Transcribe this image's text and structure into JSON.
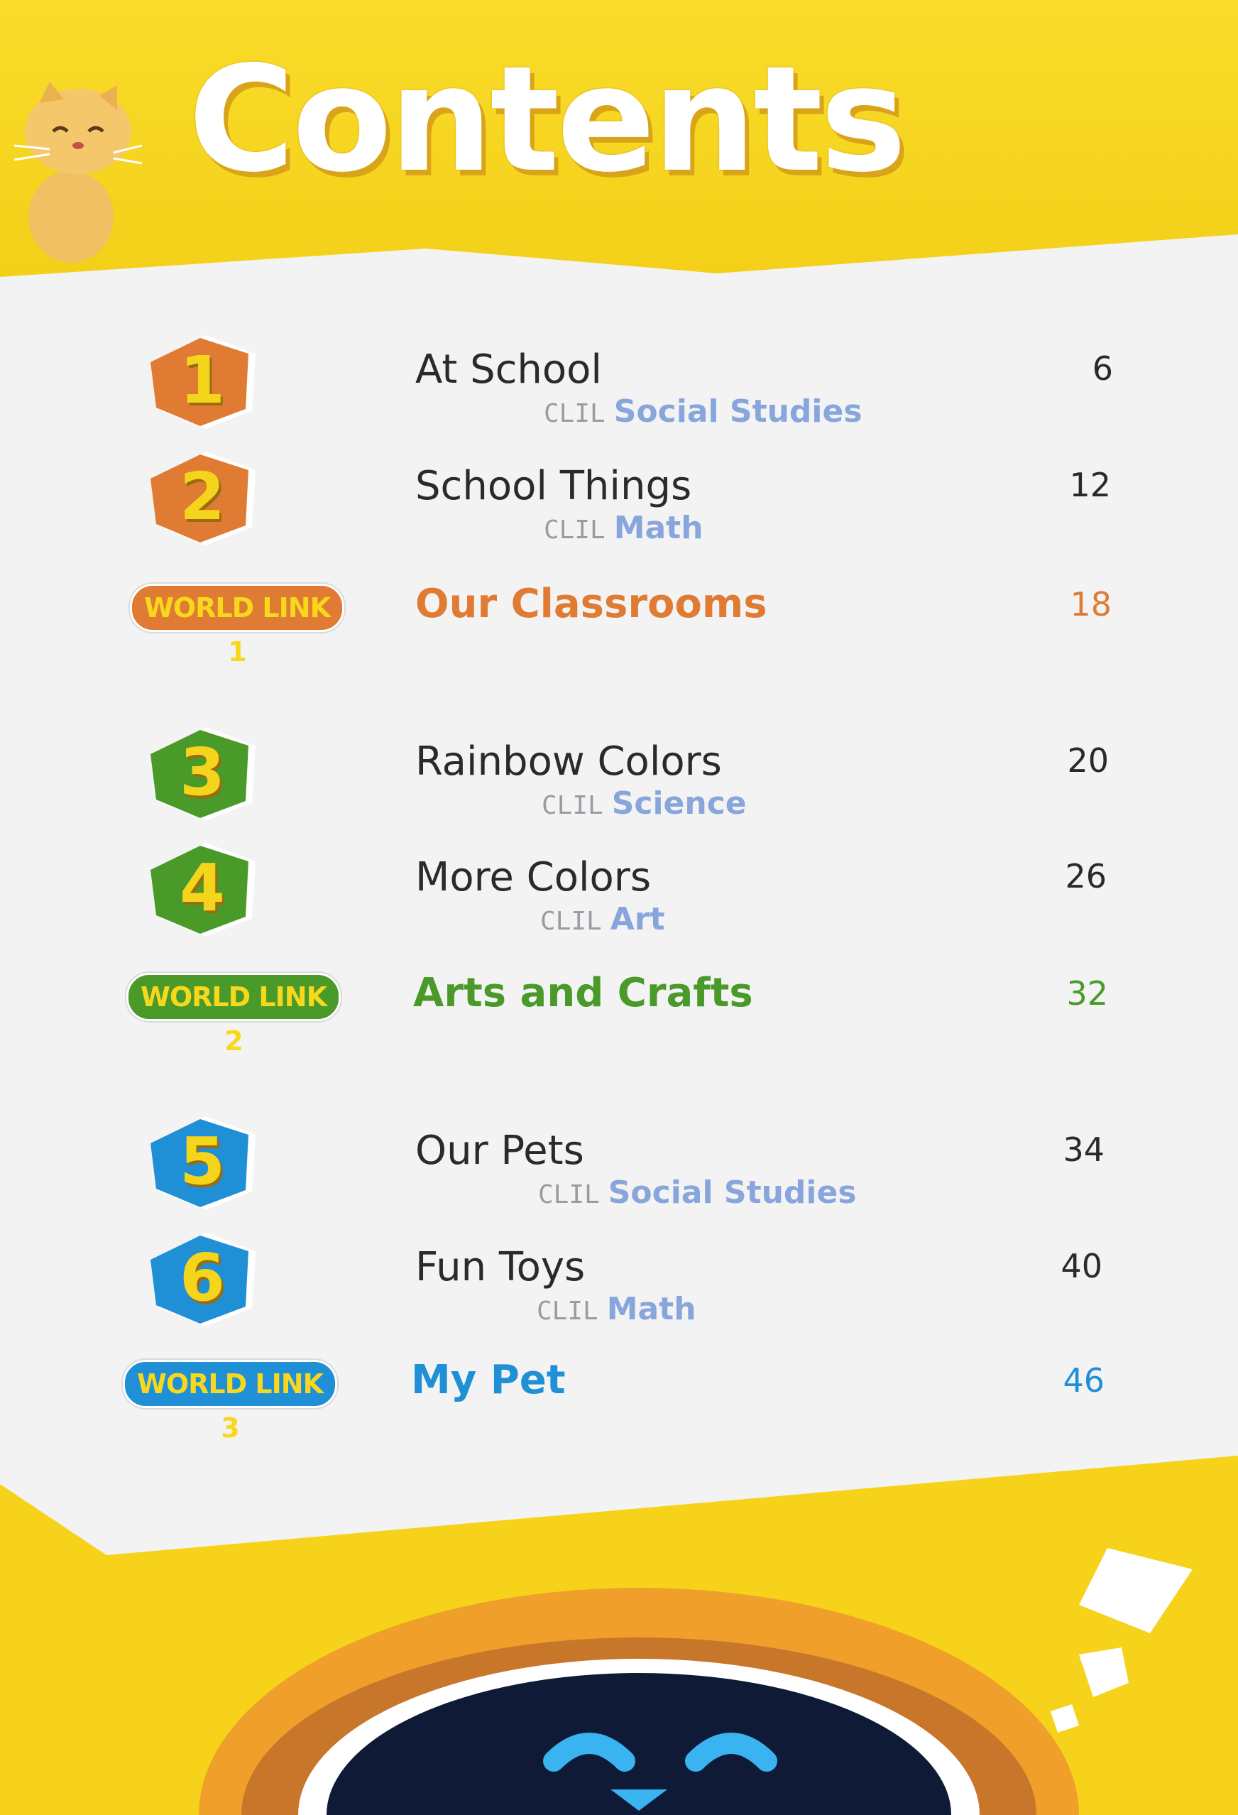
{
  "title": "Contents",
  "colors": {
    "orange": "#e07b34",
    "green": "#4a9a2a",
    "blue": "#1f8fd6",
    "clil_tag": "#9a9ca2",
    "clil_subject": "#88a6dc",
    "badge_text": "#f7d81d"
  },
  "units": [
    {
      "number": "1",
      "title": "At School",
      "clil_label": "CLIL",
      "clil_subject": "Social Studies",
      "page": "6",
      "color": "#e07b34"
    },
    {
      "number": "2",
      "title": "School Things",
      "clil_label": "CLIL",
      "clil_subject": "Math",
      "page": "12",
      "color": "#e07b34"
    },
    {
      "number": "3",
      "title": "Rainbow Colors",
      "clil_label": "CLIL",
      "clil_subject": "Science",
      "page": "20",
      "color": "#4a9a2a"
    },
    {
      "number": "4",
      "title": "More Colors",
      "clil_label": "CLIL",
      "clil_subject": "Art",
      "page": "26",
      "color": "#4a9a2a"
    },
    {
      "number": "5",
      "title": "Our Pets",
      "clil_label": "CLIL",
      "clil_subject": "Social Studies",
      "page": "34",
      "color": "#1f8fd6"
    },
    {
      "number": "6",
      "title": "Fun Toys",
      "clil_label": "CLIL",
      "clil_subject": "Math",
      "page": "40",
      "color": "#1f8fd6"
    }
  ],
  "world_links": [
    {
      "badge": "WORLD LINK 1",
      "title": "Our Classrooms",
      "page": "18",
      "color": "#e07b34"
    },
    {
      "badge": "WORLD LINK 2",
      "title": "Arts and Crafts",
      "page": "32",
      "color": "#4a9a2a"
    },
    {
      "badge": "WORLD LINK 3",
      "title": "My Pet",
      "page": "46",
      "color": "#1f8fd6"
    }
  ]
}
